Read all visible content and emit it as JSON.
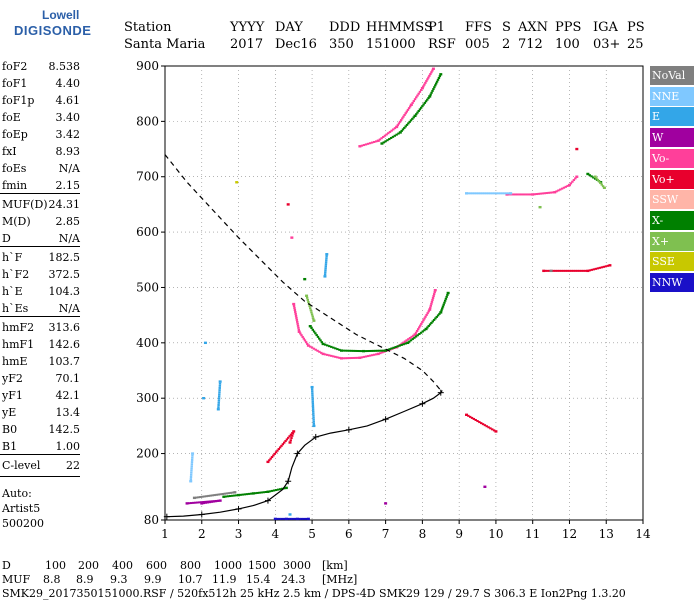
{
  "logo": {
    "line1": "Lowell",
    "line2": "DIGISONDE"
  },
  "header": {
    "row1": [
      "Station",
      "YYYY",
      "DAY",
      "DDD",
      "HHMMSS",
      "P1",
      "FFS",
      "S",
      "AXN",
      "PPS",
      "IGA",
      "PS"
    ],
    "row2": [
      "Santa Maria",
      "2017",
      "Dec16",
      "350",
      "151000",
      "RSF",
      "005",
      "2",
      "712",
      "100",
      "03+",
      "25"
    ]
  },
  "params": [
    {
      "k": "foF2",
      "v": "8.538"
    },
    {
      "k": "foF1",
      "v": "4.40"
    },
    {
      "k": "foF1p",
      "v": "4.61"
    },
    {
      "k": "foE",
      "v": "3.40"
    },
    {
      "k": "foEp",
      "v": "3.42"
    },
    {
      "k": "fxI",
      "v": "8.93"
    },
    {
      "k": "foEs",
      "v": "N/A"
    },
    {
      "k": "fmin",
      "v": "2.15"
    },
    {
      "k": "MUF(D)",
      "v": "24.31"
    },
    {
      "k": "M(D)",
      "v": "2.85"
    },
    {
      "k": "D",
      "v": "N/A"
    },
    {
      "k": "h`F",
      "v": "182.5"
    },
    {
      "k": "h`F2",
      "v": "372.5"
    },
    {
      "k": "h`E",
      "v": "104.3"
    },
    {
      "k": "h`Es",
      "v": "N/A"
    },
    {
      "k": "hmF2",
      "v": "313.6"
    },
    {
      "k": "hmF1",
      "v": "142.6"
    },
    {
      "k": "hmE",
      "v": "103.7"
    },
    {
      "k": "yF2",
      "v": "70.1"
    },
    {
      "k": "yF1",
      "v": "42.1"
    },
    {
      "k": "yE",
      "v": "13.4"
    },
    {
      "k": "B0",
      "v": "142.5"
    },
    {
      "k": "B1",
      "v": "1.00"
    },
    {
      "k": "C-level",
      "v": "22"
    }
  ],
  "auto": {
    "l1": "Auto:",
    "l2": "Artist5",
    "l3": "500200"
  },
  "legend": [
    {
      "label": "NoVal",
      "color": "#7f7f7f"
    },
    {
      "label": "NNE",
      "color": "#7fc8ff"
    },
    {
      "label": "E",
      "color": "#33a6e8"
    },
    {
      "label": "W",
      "color": "#a0009f"
    },
    {
      "label": "Vo-",
      "color": "#ff3f9a"
    },
    {
      "label": "Vo+",
      "color": "#e8002d"
    },
    {
      "label": "SSW",
      "color": "#ffb5a8"
    },
    {
      "label": "X-",
      "color": "#008000"
    },
    {
      "label": "X+",
      "color": "#7fc050"
    },
    {
      "label": "SSE",
      "color": "#c8c800"
    },
    {
      "label": "NNW",
      "color": "#1a10c8"
    }
  ],
  "footer": {
    "d_label": "D",
    "d_values": [
      "100",
      "200",
      "400",
      "600",
      "800",
      "1000",
      "1500",
      "3000"
    ],
    "d_unit": "[km]",
    "muf_label": "MUF",
    "muf_values": [
      "8.8",
      "8.9",
      "9.3",
      "9.9",
      "10.7",
      "11.9",
      "15.4",
      "24.3"
    ],
    "muf_unit": "[MHz]",
    "info": "SMK29_2017350151000.RSF / 520fx512h 25 kHz 2.5 km / DPS-4D SMK29 129 / 29.7 S 306.3 E Ion2Png 1.3.20"
  },
  "chart_data": {
    "type": "scatter",
    "xlabel": "",
    "ylabel": "",
    "xlim": [
      1,
      14
    ],
    "ylim": [
      80,
      900
    ],
    "xticks": [
      1,
      2,
      3,
      4,
      5,
      6,
      7,
      8,
      9,
      10,
      11,
      12,
      13,
      14
    ],
    "yticks": [
      80,
      200,
      300,
      400,
      500,
      600,
      700,
      800,
      900
    ],
    "grid": true,
    "series": [
      {
        "name": "Vo-",
        "color": "#ff3f9a",
        "points": [
          [
            4.45,
            590
          ],
          [
            4.5,
            470
          ],
          [
            4.65,
            420
          ],
          [
            4.9,
            395
          ],
          [
            5.3,
            380
          ],
          [
            5.8,
            372
          ],
          [
            6.3,
            373
          ],
          [
            6.8,
            380
          ],
          [
            7.3,
            392
          ],
          [
            7.8,
            415
          ],
          [
            8.2,
            460
          ],
          [
            8.35,
            495
          ],
          [
            6.3,
            755
          ],
          [
            6.8,
            765
          ],
          [
            7.3,
            790
          ],
          [
            7.7,
            830
          ],
          [
            8.0,
            860
          ],
          [
            8.3,
            895
          ],
          [
            10.3,
            668
          ],
          [
            11.0,
            668
          ],
          [
            11.6,
            672
          ],
          [
            12.0,
            685
          ],
          [
            12.2,
            700
          ]
        ]
      },
      {
        "name": "X-",
        "color": "#008000",
        "points": [
          [
            4.8,
            515
          ],
          [
            4.95,
            430
          ],
          [
            5.3,
            398
          ],
          [
            5.8,
            386
          ],
          [
            6.4,
            385
          ],
          [
            7.0,
            386
          ],
          [
            7.6,
            400
          ],
          [
            8.1,
            425
          ],
          [
            8.5,
            455
          ],
          [
            8.7,
            490
          ],
          [
            6.9,
            760
          ],
          [
            7.4,
            780
          ],
          [
            7.8,
            810
          ],
          [
            8.2,
            845
          ],
          [
            8.5,
            885
          ],
          [
            12.5,
            705
          ],
          [
            12.85,
            690
          ],
          [
            2.6,
            122
          ],
          [
            3.0,
            125
          ],
          [
            3.4,
            128
          ],
          [
            3.8,
            131
          ],
          [
            4.3,
            138
          ]
        ]
      },
      {
        "name": "X+",
        "color": "#7fc050",
        "points": [
          [
            4.85,
            485
          ],
          [
            5.05,
            440
          ],
          [
            12.7,
            700
          ],
          [
            12.95,
            680
          ],
          [
            11.2,
            645
          ]
        ]
      },
      {
        "name": "E",
        "color": "#33a6e8",
        "points": [
          [
            2.05,
            300
          ],
          [
            2.1,
            400
          ],
          [
            2.45,
            280
          ],
          [
            2.5,
            330
          ],
          [
            5.35,
            520
          ],
          [
            5.4,
            560
          ],
          [
            5.0,
            320
          ],
          [
            5.05,
            250
          ],
          [
            4.4,
            90
          ]
        ]
      },
      {
        "name": "NNE",
        "color": "#7fc8ff",
        "points": [
          [
            1.7,
            150
          ],
          [
            1.75,
            200
          ],
          [
            9.2,
            670
          ],
          [
            10.4,
            670
          ]
        ]
      },
      {
        "name": "W",
        "color": "#a0009f",
        "points": [
          [
            1.6,
            110
          ],
          [
            2.5,
            115
          ],
          [
            2.0,
            110
          ],
          [
            7.0,
            110
          ],
          [
            9.7,
            140
          ]
        ]
      },
      {
        "name": "Vo+",
        "color": "#e8002d",
        "points": [
          [
            4.35,
            650
          ],
          [
            4.4,
            220
          ],
          [
            4.5,
            240
          ],
          [
            3.8,
            185
          ],
          [
            9.2,
            270
          ],
          [
            10.0,
            240
          ],
          [
            11.3,
            530
          ],
          [
            12.5,
            530
          ],
          [
            13.1,
            540
          ],
          [
            12.2,
            750
          ]
        ]
      },
      {
        "name": "NoVal",
        "color": "#7f7f7f",
        "points": [
          [
            1.8,
            120
          ],
          [
            2.9,
            130
          ],
          [
            11.5,
            530
          ]
        ]
      },
      {
        "name": "SSE",
        "color": "#c8c800",
        "points": [
          [
            2.95,
            690
          ]
        ]
      },
      {
        "name": "NNW",
        "color": "#1a10c8",
        "points": [
          [
            4.0,
            82
          ],
          [
            4.3,
            82
          ],
          [
            4.6,
            82
          ],
          [
            4.9,
            82
          ]
        ]
      }
    ],
    "lines": [
      {
        "name": "",
        "kind": "profile",
        "color": "#000",
        "dash": false,
        "points": [
          [
            1.05,
            86
          ],
          [
            1.5,
            87
          ],
          [
            2.0,
            90
          ],
          [
            2.5,
            94
          ],
          [
            3.0,
            100
          ],
          [
            3.4,
            106
          ],
          [
            3.8,
            115
          ],
          [
            4.2,
            135
          ],
          [
            4.35,
            150
          ],
          [
            4.45,
            175
          ],
          [
            4.6,
            200
          ],
          [
            4.8,
            215
          ],
          [
            5.1,
            230
          ],
          [
            5.5,
            237
          ],
          [
            6.0,
            243
          ],
          [
            6.5,
            250
          ],
          [
            7.0,
            262
          ],
          [
            7.5,
            276
          ],
          [
            8.0,
            290
          ],
          [
            8.3,
            300
          ],
          [
            8.5,
            310
          ],
          [
            8.54,
            314
          ]
        ]
      },
      {
        "name": "",
        "kind": "model",
        "color": "#000",
        "dash": true,
        "points": [
          [
            1.0,
            740
          ],
          [
            1.6,
            690
          ],
          [
            2.3,
            640
          ],
          [
            3.0,
            590
          ],
          [
            3.6,
            550
          ],
          [
            4.2,
            510
          ],
          [
            4.8,
            475
          ],
          [
            5.5,
            445
          ],
          [
            6.2,
            415
          ],
          [
            6.9,
            392
          ],
          [
            7.5,
            372
          ],
          [
            8.0,
            350
          ],
          [
            8.3,
            330
          ],
          [
            8.5,
            314
          ]
        ]
      }
    ]
  }
}
